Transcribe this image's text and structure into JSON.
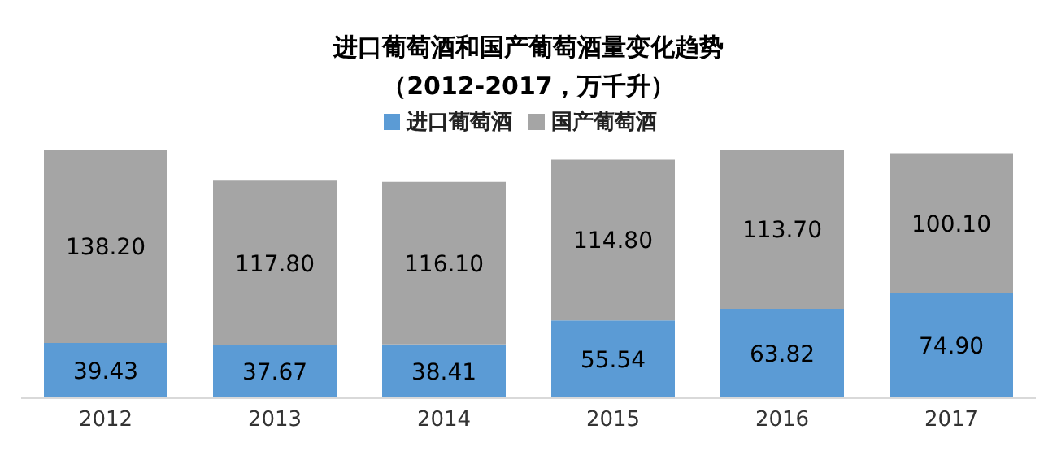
{
  "chart_data": {
    "type": "bar",
    "title": "进口葡萄酒和国产葡萄酒量变化趋势",
    "subtitle": "（2012-2017，万千升）",
    "categories": [
      "2012",
      "2013",
      "2014",
      "2015",
      "2016",
      "2017"
    ],
    "stacked": true,
    "legend": "top",
    "grid": false,
    "series": [
      {
        "name": "进口葡萄酒",
        "color": "#5b9bd5",
        "values": [
          39.43,
          37.67,
          38.41,
          55.54,
          63.82,
          74.9
        ],
        "value_labels": [
          "39.43",
          "37.67",
          "38.41",
          "55.54",
          "63.82",
          "74.90"
        ]
      },
      {
        "name": "国产葡萄酒",
        "color": "#a5a5a5",
        "values": [
          138.2,
          117.8,
          116.1,
          114.8,
          113.7,
          100.1
        ],
        "value_labels": [
          "138.20",
          "117.80",
          "116.10",
          "114.80",
          "113.70",
          "100.10"
        ]
      }
    ]
  }
}
